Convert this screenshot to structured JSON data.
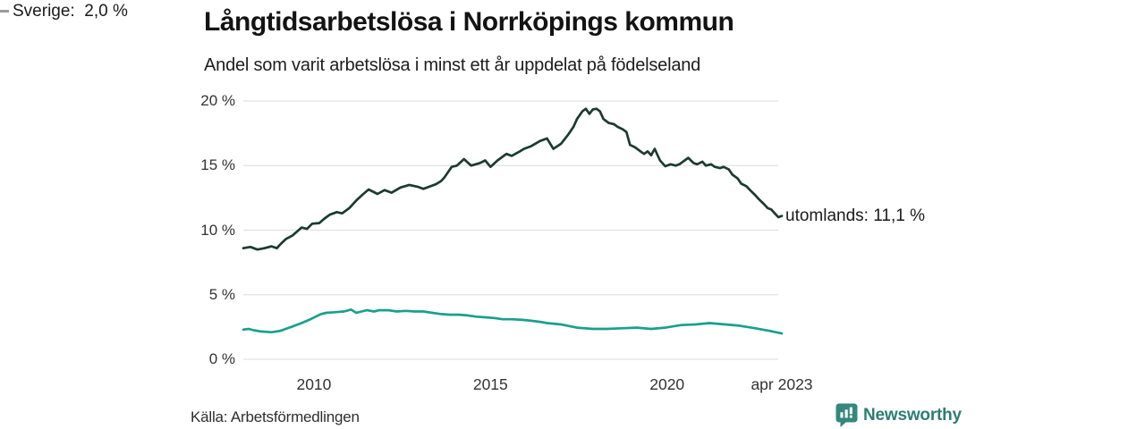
{
  "header": {
    "title": "Långtidsarbetslösa i Norrköpings kommun",
    "subtitle": "Andel som varit arbetslösa i minst ett år uppdelat på födelseland"
  },
  "source": {
    "label": "Källa: Arbetsförmedlingen"
  },
  "branding": {
    "wordmark": "Newsworthy",
    "icon": "newsworthy-pin-barchart-icon",
    "icon_color": "#35877d",
    "text_color": "#2e7d74"
  },
  "colors": {
    "utomlands_line": "#1c3a31",
    "sverige_line": "#19a08d",
    "gridline": "#e2e2e2",
    "leader_dash": "#9b9b9b",
    "title_text": "#131313",
    "axis_text": "#333333"
  },
  "chart_data": {
    "type": "line",
    "title": "Långtidsarbetslösa i Norrköpings kommun",
    "subtitle": "Andel som varit arbetslösa i minst ett år uppdelat på födelseland",
    "grid": true,
    "legend": "end-labels",
    "x_axis": {
      "range": [
        2008.0,
        2023.25
      ],
      "ticks": [
        {
          "label": "2010",
          "t": 2010
        },
        {
          "label": "2015",
          "t": 2015
        },
        {
          "label": "2020",
          "t": 2020
        },
        {
          "label": "apr 2023",
          "t": 2023.25
        }
      ]
    },
    "y_axis": {
      "range": [
        0,
        20
      ],
      "ticks": [
        0,
        5,
        10,
        15,
        20
      ],
      "labels": [
        "0 %",
        "5 %",
        "10 %",
        "15 %",
        "20 %"
      ]
    },
    "series": [
      {
        "name": "utomlands",
        "end_label": "utomlands: 11,1 %",
        "end_value": 11.1,
        "color": "#1c3a31",
        "points": [
          [
            2008.0,
            8.6
          ],
          [
            2008.2,
            8.7
          ],
          [
            2008.4,
            8.5
          ],
          [
            2008.6,
            8.6
          ],
          [
            2008.8,
            8.75
          ],
          [
            2008.95,
            8.6
          ],
          [
            2009.05,
            8.9
          ],
          [
            2009.2,
            9.3
          ],
          [
            2009.4,
            9.6
          ],
          [
            2009.65,
            10.2
          ],
          [
            2009.8,
            10.1
          ],
          [
            2009.95,
            10.5
          ],
          [
            2010.15,
            10.55
          ],
          [
            2010.3,
            10.9
          ],
          [
            2010.45,
            11.2
          ],
          [
            2010.65,
            11.4
          ],
          [
            2010.8,
            11.3
          ],
          [
            2011.0,
            11.7
          ],
          [
            2011.2,
            12.3
          ],
          [
            2011.4,
            12.8
          ],
          [
            2011.55,
            13.15
          ],
          [
            2011.8,
            12.8
          ],
          [
            2012.0,
            13.1
          ],
          [
            2012.2,
            12.9
          ],
          [
            2012.45,
            13.3
          ],
          [
            2012.7,
            13.5
          ],
          [
            2012.95,
            13.35
          ],
          [
            2013.1,
            13.2
          ],
          [
            2013.3,
            13.4
          ],
          [
            2013.45,
            13.55
          ],
          [
            2013.6,
            13.8
          ],
          [
            2013.7,
            14.1
          ],
          [
            2013.9,
            14.9
          ],
          [
            2014.05,
            15.0
          ],
          [
            2014.25,
            15.5
          ],
          [
            2014.45,
            15.0
          ],
          [
            2014.7,
            15.2
          ],
          [
            2014.85,
            15.4
          ],
          [
            2015.0,
            14.9
          ],
          [
            2015.2,
            15.4
          ],
          [
            2015.45,
            15.9
          ],
          [
            2015.6,
            15.75
          ],
          [
            2015.8,
            16.05
          ],
          [
            2015.95,
            16.3
          ],
          [
            2016.15,
            16.5
          ],
          [
            2016.4,
            16.9
          ],
          [
            2016.6,
            17.1
          ],
          [
            2016.78,
            16.3
          ],
          [
            2017.0,
            16.7
          ],
          [
            2017.2,
            17.4
          ],
          [
            2017.35,
            18.0
          ],
          [
            2017.45,
            18.6
          ],
          [
            2017.6,
            19.2
          ],
          [
            2017.7,
            19.4
          ],
          [
            2017.8,
            19.0
          ],
          [
            2017.9,
            19.35
          ],
          [
            2018.0,
            19.4
          ],
          [
            2018.1,
            19.2
          ],
          [
            2018.2,
            18.6
          ],
          [
            2018.35,
            18.3
          ],
          [
            2018.5,
            18.2
          ],
          [
            2018.6,
            18.0
          ],
          [
            2018.75,
            17.8
          ],
          [
            2018.85,
            17.6
          ],
          [
            2018.95,
            16.6
          ],
          [
            2019.1,
            16.4
          ],
          [
            2019.25,
            16.1
          ],
          [
            2019.35,
            15.9
          ],
          [
            2019.45,
            16.1
          ],
          [
            2019.55,
            15.8
          ],
          [
            2019.65,
            16.3
          ],
          [
            2019.8,
            15.4
          ],
          [
            2019.95,
            14.95
          ],
          [
            2020.1,
            15.1
          ],
          [
            2020.25,
            15.0
          ],
          [
            2020.35,
            15.1
          ],
          [
            2020.5,
            15.4
          ],
          [
            2020.6,
            15.6
          ],
          [
            2020.75,
            15.2
          ],
          [
            2020.85,
            15.1
          ],
          [
            2021.0,
            15.3
          ],
          [
            2021.1,
            15.0
          ],
          [
            2021.25,
            15.1
          ],
          [
            2021.35,
            14.9
          ],
          [
            2021.5,
            14.8
          ],
          [
            2021.6,
            14.9
          ],
          [
            2021.75,
            14.7
          ],
          [
            2021.85,
            14.3
          ],
          [
            2022.0,
            14.0
          ],
          [
            2022.1,
            13.6
          ],
          [
            2022.25,
            13.4
          ],
          [
            2022.35,
            13.1
          ],
          [
            2022.5,
            12.7
          ],
          [
            2022.6,
            12.4
          ],
          [
            2022.75,
            12.0
          ],
          [
            2022.85,
            11.7
          ],
          [
            2022.95,
            11.6
          ],
          [
            2023.05,
            11.3
          ],
          [
            2023.15,
            11.0
          ],
          [
            2023.25,
            11.1
          ]
        ]
      },
      {
        "name": "Sverige",
        "end_label": "Sverige:  2,0 %",
        "end_value": 2.0,
        "color": "#19a08d",
        "points": [
          [
            2008.0,
            2.3
          ],
          [
            2008.15,
            2.35
          ],
          [
            2008.3,
            2.25
          ],
          [
            2008.5,
            2.15
          ],
          [
            2008.8,
            2.1
          ],
          [
            2009.05,
            2.2
          ],
          [
            2009.2,
            2.35
          ],
          [
            2009.4,
            2.55
          ],
          [
            2009.65,
            2.8
          ],
          [
            2009.9,
            3.1
          ],
          [
            2010.2,
            3.5
          ],
          [
            2010.35,
            3.6
          ],
          [
            2010.6,
            3.65
          ],
          [
            2010.85,
            3.7
          ],
          [
            2011.05,
            3.85
          ],
          [
            2011.2,
            3.6
          ],
          [
            2011.35,
            3.7
          ],
          [
            2011.5,
            3.8
          ],
          [
            2011.7,
            3.7
          ],
          [
            2011.85,
            3.8
          ],
          [
            2012.1,
            3.8
          ],
          [
            2012.35,
            3.7
          ],
          [
            2012.6,
            3.75
          ],
          [
            2012.85,
            3.7
          ],
          [
            2013.1,
            3.7
          ],
          [
            2013.35,
            3.6
          ],
          [
            2013.6,
            3.5
          ],
          [
            2013.85,
            3.45
          ],
          [
            2014.1,
            3.45
          ],
          [
            2014.35,
            3.4
          ],
          [
            2014.6,
            3.3
          ],
          [
            2014.85,
            3.25
          ],
          [
            2015.1,
            3.2
          ],
          [
            2015.35,
            3.1
          ],
          [
            2015.6,
            3.1
          ],
          [
            2015.9,
            3.05
          ],
          [
            2016.1,
            3.0
          ],
          [
            2016.4,
            2.9
          ],
          [
            2016.6,
            2.8
          ],
          [
            2017.0,
            2.7
          ],
          [
            2017.45,
            2.45
          ],
          [
            2017.9,
            2.35
          ],
          [
            2018.3,
            2.35
          ],
          [
            2018.7,
            2.4
          ],
          [
            2019.15,
            2.45
          ],
          [
            2019.55,
            2.35
          ],
          [
            2019.95,
            2.45
          ],
          [
            2020.4,
            2.65
          ],
          [
            2020.8,
            2.7
          ],
          [
            2021.2,
            2.8
          ],
          [
            2021.65,
            2.7
          ],
          [
            2022.05,
            2.6
          ],
          [
            2022.5,
            2.4
          ],
          [
            2022.9,
            2.2
          ],
          [
            2023.25,
            2.0
          ]
        ]
      }
    ]
  }
}
